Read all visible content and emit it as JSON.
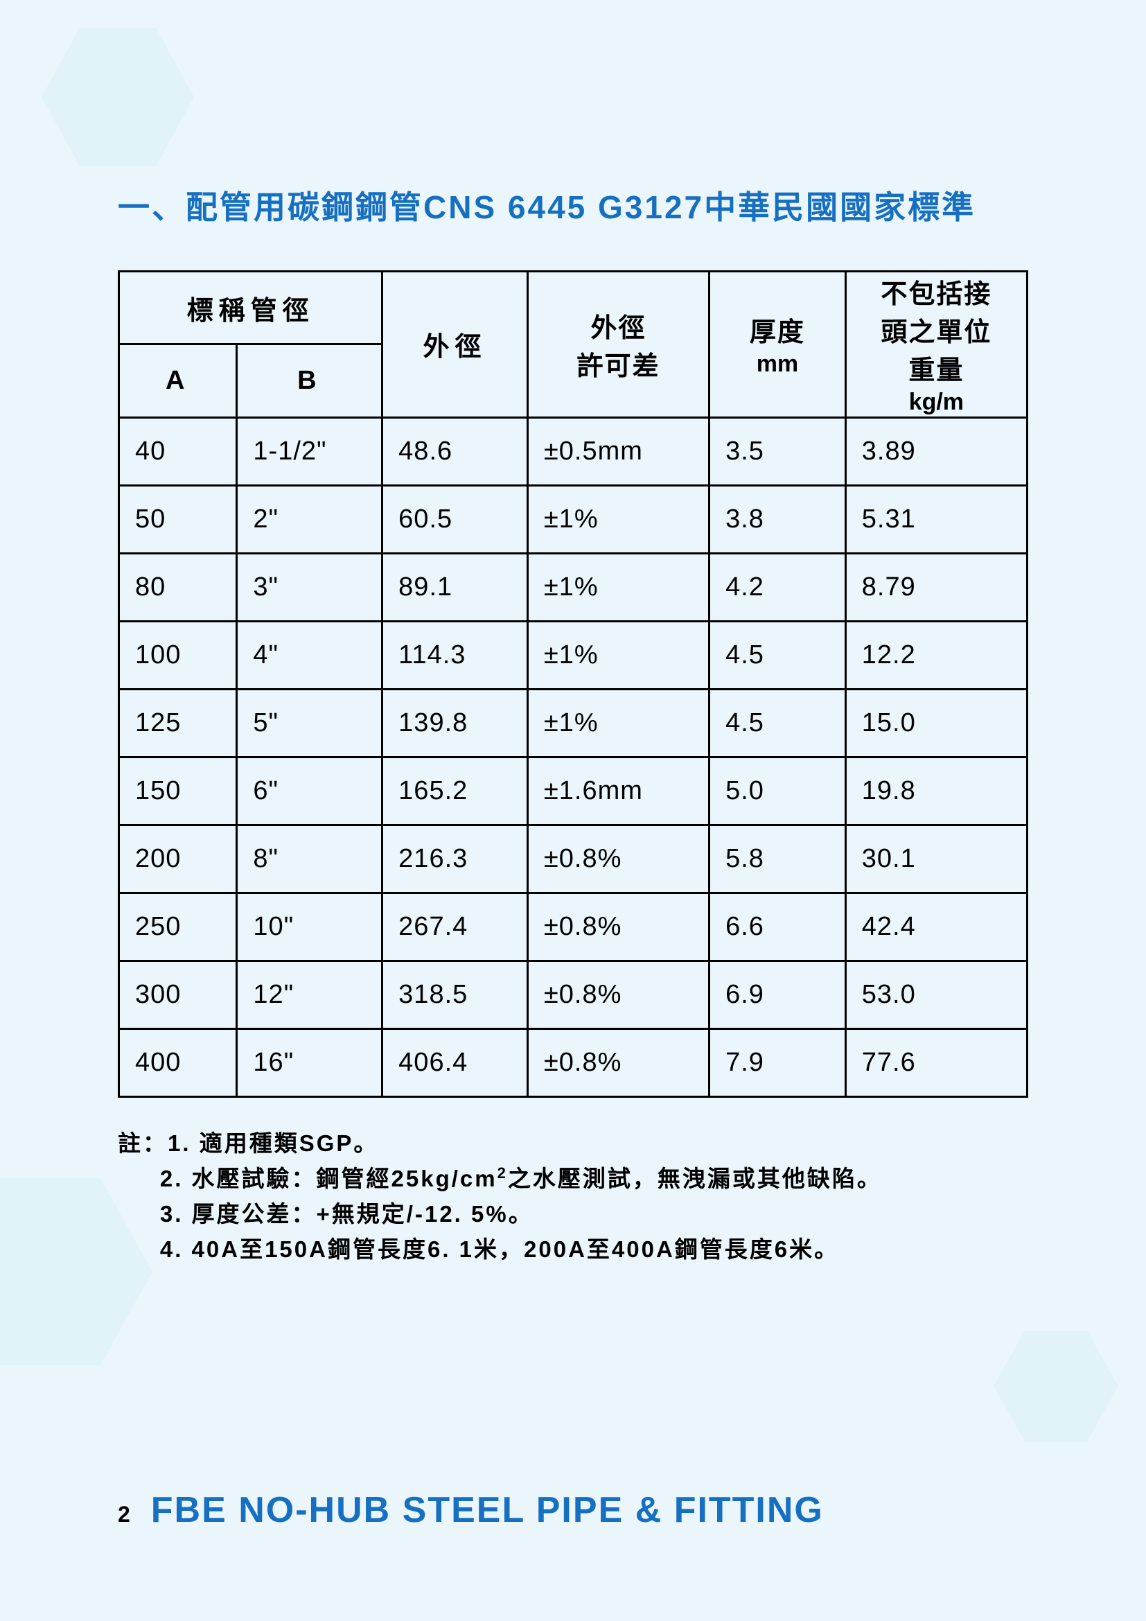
{
  "title": "一、配管用碳鋼鋼管CNS 6445 G3127中華民國國家標準",
  "table": {
    "type": "table",
    "border_color": "#000000",
    "text_color": "#000000",
    "header_fontsize": 38,
    "cell_fontsize": 38,
    "col_widths_pct": [
      13,
      16,
      16,
      20,
      15,
      20
    ],
    "head": {
      "nominal_label": "標稱管徑",
      "outer_dia": "外徑",
      "outer_dia_tol_line1": "外徑",
      "outer_dia_tol_line2": "許可差",
      "thickness_line1": "厚度",
      "thickness_line2": "mm",
      "unit_weight_line1": "不包括接",
      "unit_weight_line2": "頭之單位",
      "unit_weight_line3": "重量",
      "unit_weight_line4": "kg/m",
      "sub_a": "A",
      "sub_b": "B"
    },
    "rows": [
      {
        "a": "40",
        "b": "1-1/2\"",
        "od": "48.6",
        "tol": "±0.5mm",
        "thk": "3.5",
        "wt": "3.89"
      },
      {
        "a": "50",
        "b": "2\"",
        "od": "60.5",
        "tol": "±1%",
        "thk": "3.8",
        "wt": "5.31"
      },
      {
        "a": "80",
        "b": "3\"",
        "od": "89.1",
        "tol": "±1%",
        "thk": "4.2",
        "wt": "8.79"
      },
      {
        "a": "100",
        "b": "4\"",
        "od": "114.3",
        "tol": "±1%",
        "thk": "4.5",
        "wt": "12.2"
      },
      {
        "a": "125",
        "b": "5\"",
        "od": "139.8",
        "tol": "±1%",
        "thk": "4.5",
        "wt": "15.0"
      },
      {
        "a": "150",
        "b": "6\"",
        "od": "165.2",
        "tol": "±1.6mm",
        "thk": "5.0",
        "wt": "19.8"
      },
      {
        "a": "200",
        "b": "8\"",
        "od": "216.3",
        "tol": "±0.8%",
        "thk": "5.8",
        "wt": "30.1"
      },
      {
        "a": "250",
        "b": "10\"",
        "od": "267.4",
        "tol": "±0.8%",
        "thk": "6.6",
        "wt": "42.4"
      },
      {
        "a": "300",
        "b": "12\"",
        "od": "318.5",
        "tol": "±0.8%",
        "thk": "6.9",
        "wt": "53.0"
      },
      {
        "a": "400",
        "b": "16\"",
        "od": "406.4",
        "tol": "±0.8%",
        "thk": "7.9",
        "wt": "77.6"
      }
    ]
  },
  "notes": {
    "prefix": "註：",
    "n1": "1. 適用種類SGP。",
    "n2a": "2. 水壓試驗：鋼管經25kg/cm",
    "n2b": "之水壓測試，無洩漏或其他缺陷。",
    "n3": "3. 厚度公差：+無規定/-12. 5%。",
    "n4": "4. 40A至150A鋼管長度6. 1米，200A至400A鋼管長度6米。"
  },
  "footer": {
    "page_number": "2",
    "title": "FBE NO-HUB STEEL PIPE & FITTING"
  },
  "colors": {
    "background": "#eaf6fb",
    "heading_text": "#166fc1",
    "body_text": "#000000",
    "hex_decoration": "#cdeaf6"
  }
}
